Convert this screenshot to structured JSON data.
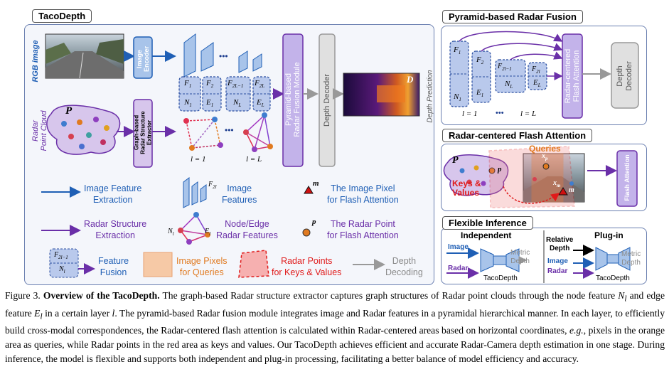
{
  "main": {
    "title": "TacoDepth",
    "rgb_label": "RGB image",
    "radar_label": "Radar\nPoint Cloud",
    "image_encoder": "Image\nEncoder",
    "graph_extractor": "Graph-based\nRadar Structure\nExtractor",
    "fusion_module": "Pyramid-based\nRadar Fusion Module",
    "depth_decoder": "Depth Decoder",
    "depth_prediction": "Depth Prediction",
    "pred_letter": "D",
    "point_set_letter": "P",
    "feature_labels": [
      "F",
      "F",
      "F",
      "F"
    ],
    "feature_subs": [
      "1",
      "2",
      "2L−1",
      "2L"
    ],
    "node_labels": [
      "N",
      "E",
      "N",
      "E"
    ],
    "node_subs": [
      "1",
      "1",
      "L",
      "L"
    ],
    "dots": "•••",
    "layer1": "l = 1",
    "layerL": "l = L"
  },
  "legend": {
    "image_feature_extraction": "Image Feature\nExtraction",
    "image_features": "Image\nFeatures",
    "image_features_sub": "F",
    "image_features_sub2": "2l",
    "image_pixel": "The Image Pixel\nfor Flash Attention",
    "pixel_symbol": "m",
    "radar_structure_extraction": "Radar Structure\nExtraction",
    "node_edge": "Node/Edge\nRadar Features",
    "node_sym": "N",
    "node_sym_sub": "l",
    "edge_sym": "E",
    "edge_sym_sub": "l",
    "radar_point": "The Radar Point\nfor Flash Attention",
    "point_symbol": "p",
    "feature_fusion": "Feature\nFusion",
    "fusion_f": "F",
    "fusion_f_sub": "2l−1",
    "fusion_n": "N",
    "fusion_n_sub": "l",
    "pixels_queries": "Image Pixels\nfor Queries",
    "radar_keys": "Radar Points\nfor Keys & Values",
    "depth_decoding": "Depth\nDecoding"
  },
  "pyramid": {
    "title": "Pyramid-based Radar Fusion",
    "f1": "F",
    "f1s": "1",
    "n1": "N",
    "n1s": "1",
    "f2": "F",
    "f2s": "2",
    "e1": "E",
    "e1s": "1",
    "f2l": "F",
    "f2ls": "2l−1",
    "nl": "N",
    "nls": "L",
    "f2l2": "F",
    "f2l2s": "2l",
    "el": "E",
    "els": "L",
    "l1": "l = 1",
    "dots": "•••",
    "lL": "l = L",
    "flash": "Radar-centered\nFlash Attention",
    "decoder": "Depth\nDecoder"
  },
  "flash": {
    "title": "Radar-centered Flash Attention",
    "queries": "Queries",
    "keys": "Keys &\nValues",
    "p_letter": "P",
    "p_sym": "p",
    "xp": "x",
    "xp_sub": "p",
    "xm": "x",
    "xm_sub": "m",
    "m_sym": "m",
    "block": "Flash Attention"
  },
  "inference": {
    "title": "Flexible Inference",
    "independent": "Independent",
    "plugin": "Plug-in",
    "image": "Image",
    "radar": "Radar",
    "metric_depth": "Metric\nDepth",
    "tacodepth": "TacoDepth",
    "relative_depth": "Relative\nDepth",
    "image2": "Image",
    "radar2": "Radar",
    "metric_depth2": "Metric\nDepth",
    "tacodepth2": "TacoDepth"
  },
  "caption": {
    "prefix": "Figure 3.",
    "bold": "Overview of the TacoDepth.",
    "text1": "The graph-based Radar structure extractor captures graph structures of Radar point clouds through the node feature",
    "n": "N",
    "n_sub": "l",
    "text2": "and edge feature",
    "e": "E",
    "e_sub": "l",
    "text3": "in a certain layer",
    "l": "l",
    "text4": ". The pyramid-based Radar fusion module integrates image and Radar features in a pyramidal hierarchical manner. In each layer, to efficiently build cross-modal correspondences, the Radar-centered flash attention is calculated within Radar-centered areas based on horizontal coordinates,",
    "eg": "e.g.",
    "text5": ", pixels in the orange area as queries, while Radar points in the red area as keys and values. Our TacoDepth achieves efficient and accurate Radar-Camera depth estimation in one stage. During inference, the model is flexible and supports both independent and plug-in processing, facilitating a better balance of model efficiency and accuracy."
  },
  "colors": {
    "blue": "#1f5fb5",
    "purple": "#6a2fa8",
    "orange": "#e07a20",
    "red": "#e01a1a",
    "panel_border": "#6a7fb0"
  }
}
